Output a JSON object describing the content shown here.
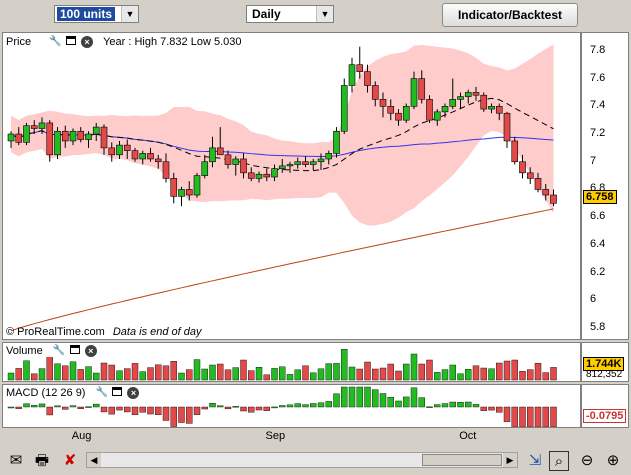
{
  "toolbar": {
    "units": "100 units",
    "period": "Daily",
    "indicator_button": "Indicator/Backtest"
  },
  "price_panel": {
    "label": "Price",
    "info": "Year : High 7.832 Low 5.030",
    "copyright": "© ProRealTime.com",
    "note": "Data is end of day",
    "last_price": "6.758",
    "yticks": [
      "7.8",
      "7.6",
      "7.4",
      "7.2",
      "7",
      "6.8",
      "6.6",
      "6.4",
      "6.2",
      "6",
      "5.8"
    ]
  },
  "volume_panel": {
    "label": "Volume",
    "value_primary": "1.744K",
    "value_secondary": "812,352"
  },
  "macd_panel": {
    "label": "MACD (12 26 9)",
    "value": "-0.0795"
  },
  "x_axis": [
    "Aug",
    "Sep",
    "Oct"
  ],
  "colors": {
    "up": "#22bb22",
    "down": "#e24a4a",
    "band": "#ffcccc",
    "ma_blue": "#3333ee",
    "ma_long": "#bb4411"
  },
  "chart_data": {
    "type": "candlestick",
    "candles": [
      [
        7.15,
        7.22,
        7.1,
        7.2
      ],
      [
        7.2,
        7.25,
        7.12,
        7.14
      ],
      [
        7.14,
        7.28,
        7.12,
        7.26
      ],
      [
        7.26,
        7.3,
        7.2,
        7.24
      ],
      [
        7.24,
        7.32,
        7.2,
        7.28
      ],
      [
        7.28,
        7.3,
        7.0,
        7.05
      ],
      [
        7.05,
        7.25,
        7.02,
        7.22
      ],
      [
        7.22,
        7.26,
        7.1,
        7.15
      ],
      [
        7.15,
        7.24,
        7.12,
        7.22
      ],
      [
        7.22,
        7.25,
        7.14,
        7.16
      ],
      [
        7.16,
        7.22,
        7.1,
        7.2
      ],
      [
        7.2,
        7.28,
        7.15,
        7.25
      ],
      [
        7.25,
        7.27,
        7.05,
        7.1
      ],
      [
        7.1,
        7.14,
        7.0,
        7.05
      ],
      [
        7.05,
        7.15,
        7.02,
        7.12
      ],
      [
        7.12,
        7.16,
        7.02,
        7.08
      ],
      [
        7.08,
        7.1,
        7.0,
        7.02
      ],
      [
        7.02,
        7.08,
        6.98,
        7.06
      ],
      [
        7.06,
        7.1,
        7.0,
        7.02
      ],
      [
        7.02,
        7.05,
        6.95,
        7.0
      ],
      [
        7.0,
        7.06,
        6.85,
        6.88
      ],
      [
        6.88,
        6.92,
        6.7,
        6.75
      ],
      [
        6.75,
        6.82,
        6.68,
        6.8
      ],
      [
        6.8,
        6.86,
        6.72,
        6.76
      ],
      [
        6.76,
        6.92,
        6.74,
        6.9
      ],
      [
        6.9,
        7.05,
        6.88,
        7.0
      ],
      [
        7.0,
        7.18,
        6.96,
        7.1
      ],
      [
        7.1,
        7.25,
        7.05,
        7.05
      ],
      [
        7.05,
        7.08,
        6.95,
        6.98
      ],
      [
        6.98,
        7.04,
        6.9,
        7.02
      ],
      [
        7.02,
        7.06,
        6.88,
        6.92
      ],
      [
        6.92,
        6.96,
        6.86,
        6.88
      ],
      [
        6.88,
        6.93,
        6.85,
        6.91
      ],
      [
        6.91,
        6.95,
        6.86,
        6.89
      ],
      [
        6.89,
        6.98,
        6.86,
        6.95
      ],
      [
        6.95,
        7.02,
        6.92,
        6.97
      ],
      [
        6.97,
        7.0,
        6.92,
        6.98
      ],
      [
        6.98,
        7.03,
        6.95,
        7.0
      ],
      [
        7.0,
        7.04,
        6.96,
        6.98
      ],
      [
        6.98,
        7.02,
        6.94,
        7.0
      ],
      [
        7.0,
        7.06,
        6.94,
        7.02
      ],
      [
        7.02,
        7.08,
        6.98,
        7.06
      ],
      [
        7.06,
        7.25,
        7.03,
        7.22
      ],
      [
        7.22,
        7.6,
        7.2,
        7.55
      ],
      [
        7.55,
        7.75,
        7.5,
        7.7
      ],
      [
        7.7,
        7.83,
        7.6,
        7.65
      ],
      [
        7.65,
        7.7,
        7.5,
        7.55
      ],
      [
        7.55,
        7.58,
        7.4,
        7.45
      ],
      [
        7.45,
        7.5,
        7.32,
        7.4
      ],
      [
        7.4,
        7.45,
        7.3,
        7.35
      ],
      [
        7.35,
        7.38,
        7.26,
        7.3
      ],
      [
        7.3,
        7.42,
        7.28,
        7.4
      ],
      [
        7.4,
        7.65,
        7.38,
        7.6
      ],
      [
        7.6,
        7.66,
        7.42,
        7.45
      ],
      [
        7.45,
        7.48,
        7.28,
        7.3
      ],
      [
        7.3,
        7.38,
        7.26,
        7.36
      ],
      [
        7.36,
        7.42,
        7.32,
        7.4
      ],
      [
        7.4,
        7.6,
        7.38,
        7.45
      ],
      [
        7.45,
        7.5,
        7.38,
        7.47
      ],
      [
        7.47,
        7.52,
        7.42,
        7.5
      ],
      [
        7.5,
        7.54,
        7.44,
        7.48
      ],
      [
        7.48,
        7.5,
        7.36,
        7.38
      ],
      [
        7.38,
        7.42,
        7.35,
        7.4
      ],
      [
        7.4,
        7.42,
        7.3,
        7.35
      ],
      [
        7.35,
        7.36,
        7.1,
        7.15
      ],
      [
        7.15,
        7.18,
        6.98,
        7.0
      ],
      [
        7.0,
        7.05,
        6.88,
        6.92
      ],
      [
        6.92,
        6.96,
        6.84,
        6.88
      ],
      [
        6.88,
        6.92,
        6.78,
        6.8
      ],
      [
        6.8,
        6.84,
        6.72,
        6.76
      ],
      [
        6.76,
        6.8,
        6.68,
        6.7
      ]
    ],
    "ylim": [
      5.75,
      7.9
    ],
    "x_labels": [
      "Aug",
      "Sep",
      "Oct"
    ],
    "x_label_index": [
      9,
      34,
      59
    ],
    "last": 6.758
  }
}
